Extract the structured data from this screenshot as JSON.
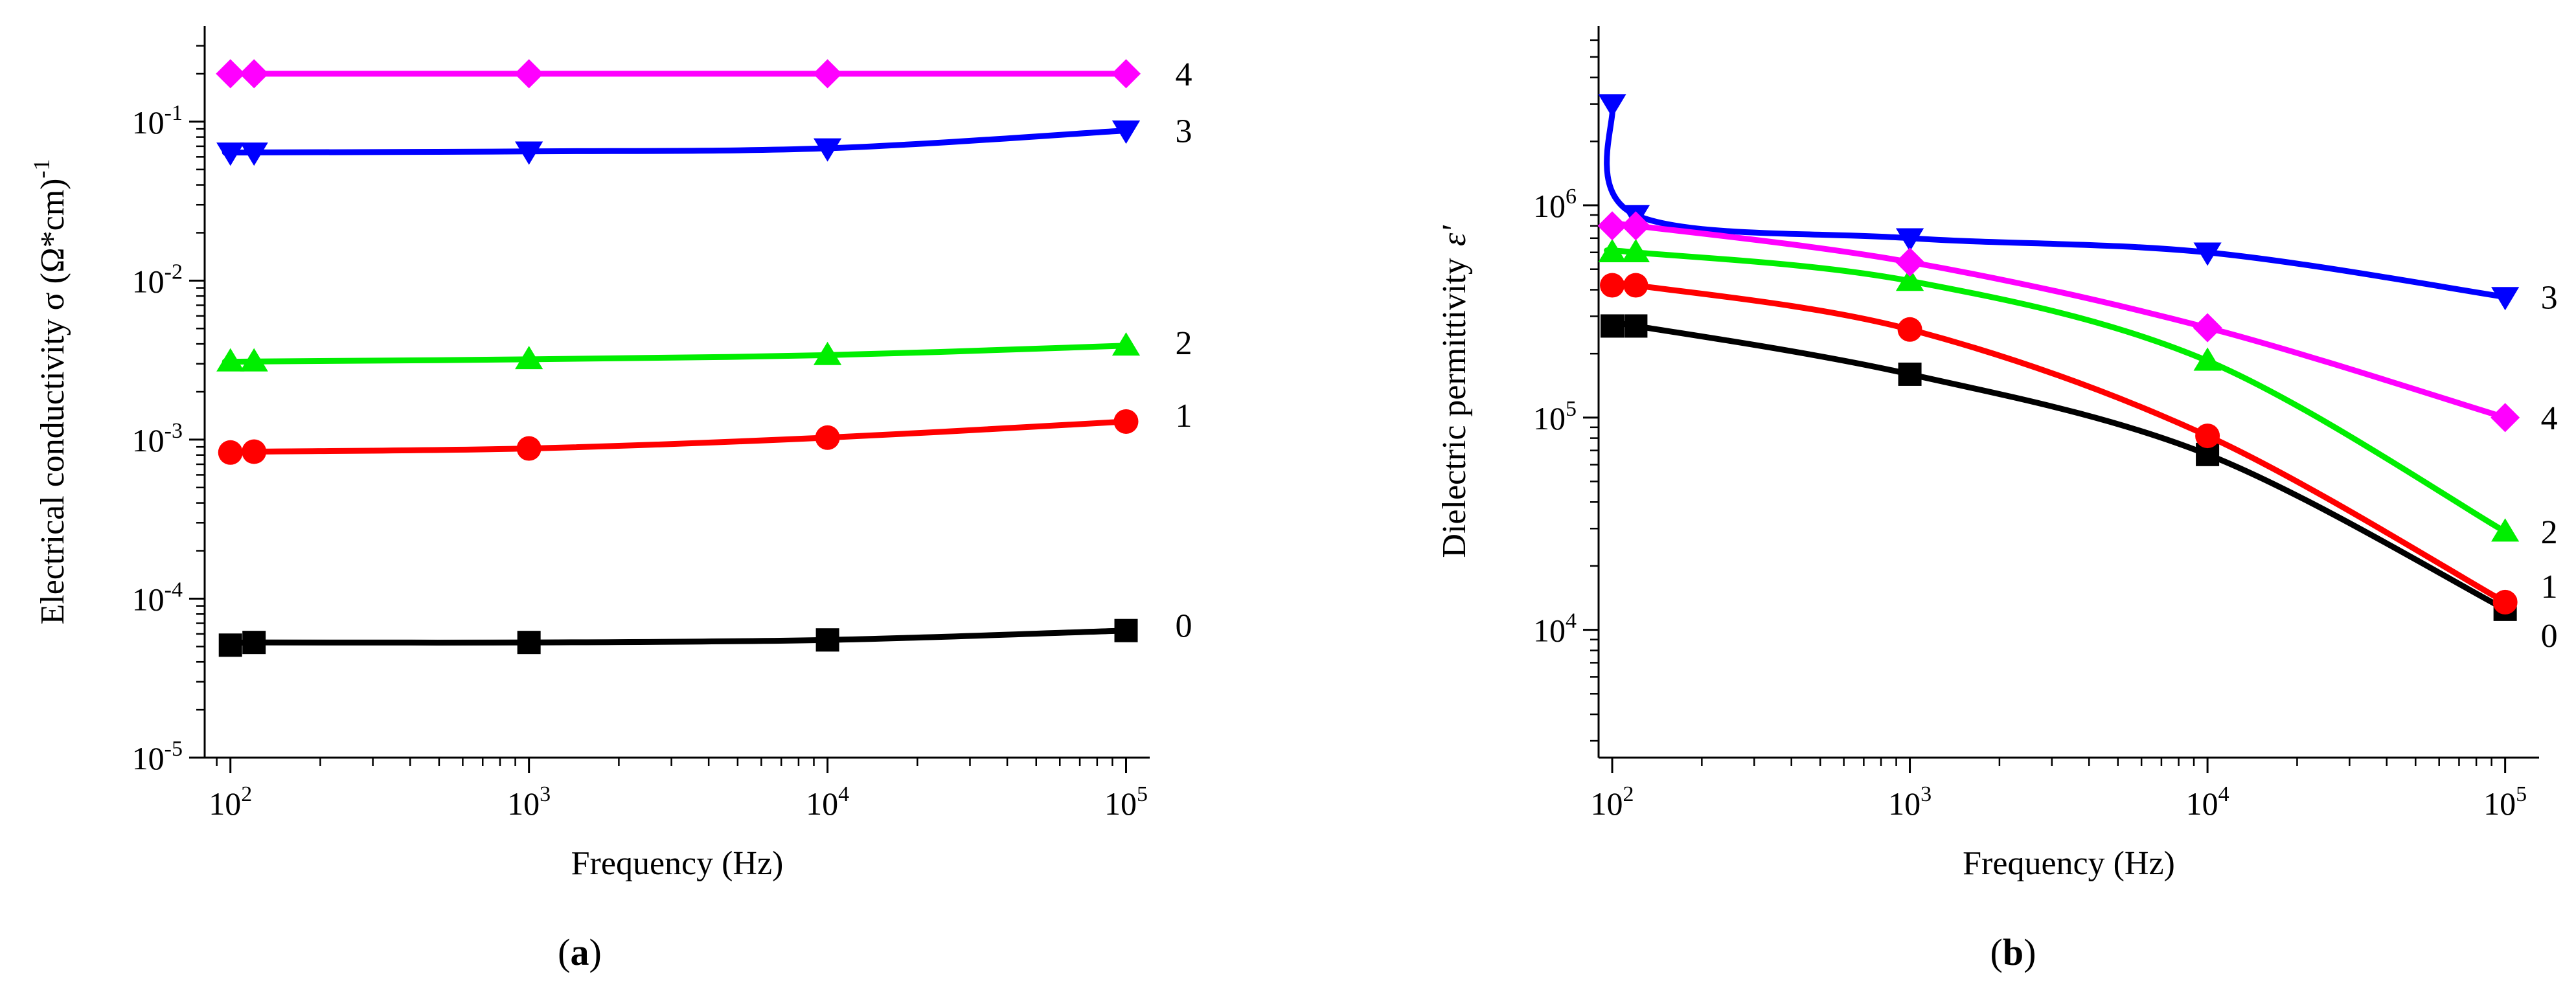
{
  "panels": [
    {
      "label_open": "(",
      "label_letter": "a",
      "label_close": ")"
    },
    {
      "label_open": "(",
      "label_letter": "b",
      "label_close": ")"
    }
  ],
  "chart_data": [
    {
      "type": "line",
      "title": "",
      "xlabel": "Frequency (Hz)",
      "ylabel": "Electrical conductivity σ (Ω*cm)",
      "ylabel_superscript": "-1",
      "xscale": "log",
      "yscale": "log",
      "xlim": [
        82,
        120000
      ],
      "ylim": [
        1e-05,
        0.4
      ],
      "xticks": [
        {
          "base": "10",
          "exp": "2"
        },
        {
          "base": "10",
          "exp": "3"
        },
        {
          "base": "10",
          "exp": "4"
        },
        {
          "base": "10",
          "exp": "5"
        }
      ],
      "xtick_values": [
        100,
        1000,
        10000,
        100000
      ],
      "yticks": [
        {
          "base": "10",
          "exp": "-5"
        },
        {
          "base": "10",
          "exp": "-4"
        },
        {
          "base": "10",
          "exp": "-3"
        },
        {
          "base": "10",
          "exp": "-2"
        },
        {
          "base": "10",
          "exp": "-1"
        }
      ],
      "ytick_values": [
        1e-05,
        0.0001,
        0.001,
        0.01,
        0.1
      ],
      "series": [
        {
          "name": "0",
          "color": "#000000",
          "marker": "square",
          "x": [
            100,
            120,
            1000,
            10000,
            100000
          ],
          "y": [
            5.1e-05,
            5.3e-05,
            5.3e-05,
            5.5e-05,
            6.3e-05
          ]
        },
        {
          "name": "1",
          "color": "#ff0000",
          "marker": "circle",
          "x": [
            100,
            120,
            1000,
            10000,
            100000
          ],
          "y": [
            0.00083,
            0.00084,
            0.00088,
            0.00103,
            0.0013
          ]
        },
        {
          "name": "2",
          "color": "#00ee00",
          "marker": "triangle-up",
          "x": [
            100,
            120,
            1000,
            10000,
            100000
          ],
          "y": [
            0.0031,
            0.0031,
            0.0032,
            0.0034,
            0.0039
          ]
        },
        {
          "name": "3",
          "color": "#0000ff",
          "marker": "triangle-down",
          "x": [
            100,
            120,
            1000,
            10000,
            100000
          ],
          "y": [
            0.064,
            0.064,
            0.065,
            0.068,
            0.088
          ]
        },
        {
          "name": "4",
          "color": "#ff00ff",
          "marker": "diamond",
          "x": [
            100,
            120,
            1000,
            10000,
            100000
          ],
          "y": [
            0.2,
            0.2,
            0.2,
            0.2,
            0.2
          ]
        }
      ]
    },
    {
      "type": "line",
      "title": "",
      "xlabel": "Frequency (Hz)",
      "ylabel": "Dielectric permittivity",
      "ylabel_symbol": "ε'",
      "xscale": "log",
      "yscale": "log",
      "xlim": [
        90,
        130000
      ],
      "ylim": [
        2500,
        7000000
      ],
      "xticks": [
        {
          "base": "10",
          "exp": "2"
        },
        {
          "base": "10",
          "exp": "3"
        },
        {
          "base": "10",
          "exp": "4"
        },
        {
          "base": "10",
          "exp": "5"
        }
      ],
      "xtick_values": [
        100,
        1000,
        10000,
        100000
      ],
      "yticks": [
        {
          "base": "10",
          "exp": "4"
        },
        {
          "base": "10",
          "exp": "5"
        },
        {
          "base": "10",
          "exp": "6"
        }
      ],
      "ytick_values": [
        10000,
        100000,
        1000000
      ],
      "series": [
        {
          "name": "0",
          "color": "#000000",
          "marker": "square",
          "x": [
            100,
            120,
            1000,
            10000,
            100000
          ],
          "y": [
            270000,
            270000,
            160000,
            67000,
            12500
          ]
        },
        {
          "name": "1",
          "color": "#ff0000",
          "marker": "circle",
          "x": [
            100,
            120,
            1000,
            10000,
            100000
          ],
          "y": [
            420000,
            420000,
            260000,
            82000,
            13500
          ]
        },
        {
          "name": "2",
          "color": "#00ee00",
          "marker": "triangle-up",
          "x": [
            100,
            120,
            1000,
            10000,
            100000
          ],
          "y": [
            600000,
            600000,
            440000,
            185000,
            29000
          ]
        },
        {
          "name": "3",
          "color": "#0000ff",
          "marker": "triangle-down",
          "x": [
            100,
            120,
            1000,
            10000,
            100000
          ],
          "y": [
            3000000,
            900000,
            700000,
            600000,
            370000
          ]
        },
        {
          "name": "4",
          "color": "#ff00ff",
          "marker": "diamond",
          "x": [
            100,
            120,
            1000,
            10000,
            100000
          ],
          "y": [
            800000,
            800000,
            540000,
            265000,
            100000
          ]
        }
      ]
    }
  ]
}
